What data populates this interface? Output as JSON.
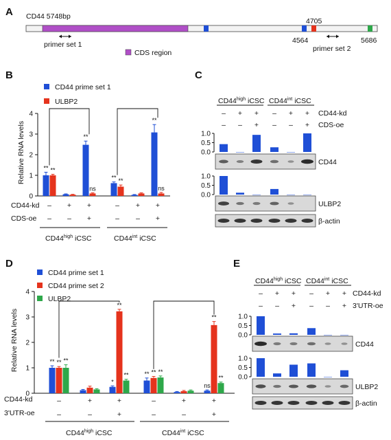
{
  "panel_labels": {
    "A": "A",
    "B": "B",
    "C": "C",
    "D": "D",
    "E": "E"
  },
  "panelA": {
    "gene_label": "CD44 5748bp",
    "pos_4705": "4705",
    "pos_4564": "4564",
    "pos_5686": "5686",
    "primer1": "primer set 1",
    "primer2": "primer set 2",
    "legend_cds": "CDS region",
    "colors": {
      "cds": "#b04fc7",
      "blue": "#1f4fd6",
      "red": "#e5331d",
      "green": "#2ea84a"
    }
  },
  "panelB": {
    "legend": [
      "CD44 prime set 1",
      "ULBP2"
    ],
    "ylabel": "Relative RNA levels",
    "row_labels": [
      "CD44-kd",
      "CDS-oe"
    ],
    "group_labels": [
      "CD44",
      "high",
      "iCSC",
      "CD44",
      "int",
      "iCSC"
    ]
  },
  "panelC": {
    "headers": [
      "CD44",
      "high",
      "iCSC",
      "CD44",
      "int",
      "iCSC"
    ],
    "row_labels": [
      "CD44-kd",
      "CDS-oe"
    ],
    "blot_labels": [
      "CD44",
      "ULBP2",
      "β-actin"
    ]
  },
  "panelD": {
    "legend": [
      "CD44 prime set 1",
      "CD44 prime set 2",
      "ULBP2"
    ],
    "ylabel": "Relative RNA levels",
    "row_labels": [
      "CD44-kd",
      "3'UTR-oe"
    ],
    "group_labels": [
      "CD44",
      "high",
      "iCSC",
      "CD44",
      "int",
      "iCSC"
    ]
  },
  "panelE": {
    "headers": [
      "CD44",
      "high",
      "iCSC",
      "CD44",
      "int",
      "iCSC"
    ],
    "row_labels": [
      "CD44-kd",
      "3'UTR-oe"
    ],
    "blot_labels": [
      "CD44",
      "ULBP2",
      "β-actin"
    ]
  },
  "chart_data": [
    {
      "panel": "B",
      "type": "bar",
      "categories": [
        "1",
        "2",
        "3",
        "4",
        "5",
        "6"
      ],
      "row_signs": {
        "CD44-kd": [
          "–",
          "+",
          "+",
          "–",
          "+",
          "+"
        ],
        "CDS-oe": [
          "–",
          "–",
          "+",
          "–",
          "–",
          "+"
        ]
      },
      "series": [
        {
          "name": "CD44 prime set 1",
          "color": "#1f4fd6",
          "values": [
            1.0,
            0.08,
            2.48,
            0.62,
            0.05,
            3.08
          ],
          "errors": [
            0.15,
            0.02,
            0.18,
            0.06,
            0.02,
            0.38
          ]
        },
        {
          "name": "ULBP2",
          "color": "#e5331d",
          "values": [
            1.0,
            0.06,
            0.12,
            0.45,
            0.12,
            0.12
          ],
          "errors": [
            0.05,
            0.02,
            0.03,
            0.08,
            0.03,
            0.05
          ]
        }
      ],
      "significance": [
        [
          "**",
          "**"
        ],
        [
          "",
          ""
        ],
        [
          "**",
          "ns"
        ],
        [
          "**",
          "**"
        ],
        [
          "",
          ""
        ],
        [
          "**",
          "ns"
        ]
      ],
      "ylim": [
        0,
        4
      ],
      "yticks": [
        "0",
        "1",
        "2",
        "3",
        "4"
      ]
    },
    {
      "panel": "C",
      "type": "bar",
      "categories": [
        "1",
        "2",
        "3",
        "4",
        "5",
        "6"
      ],
      "row_signs": {
        "CD44-kd": [
          "–",
          "+",
          "+",
          "–",
          "+",
          "+"
        ],
        "CDS-oe": [
          "–",
          "–",
          "+",
          "–",
          "–",
          "+"
        ]
      },
      "series": [
        {
          "name": "CD44",
          "color": "#1f4fd6",
          "values": [
            0.42,
            0.0,
            0.92,
            0.25,
            0.0,
            1.0
          ]
        },
        {
          "name": "ULBP2",
          "color": "#1f4fd6",
          "values": [
            1.0,
            0.1,
            0.0,
            0.3,
            0.0,
            0.0
          ]
        }
      ],
      "ylim": [
        0,
        1.0
      ],
      "yticks": [
        "0.0",
        "0.5",
        "1.0"
      ]
    },
    {
      "panel": "D",
      "type": "bar",
      "categories": [
        "1",
        "2",
        "3",
        "4",
        "5",
        "6"
      ],
      "row_signs": {
        "CD44-kd": [
          "–",
          "+",
          "+",
          "–",
          "+",
          "+"
        ],
        "3'UTR-oe": [
          "–",
          "–",
          "+",
          "–",
          "–",
          "+"
        ]
      },
      "series": [
        {
          "name": "CD44 prime set 1",
          "color": "#1f4fd6",
          "values": [
            1.0,
            0.12,
            0.25,
            0.5,
            0.05,
            0.1
          ],
          "errors": [
            0.08,
            0.03,
            0.04,
            0.1,
            0.02,
            0.03
          ]
        },
        {
          "name": "CD44 prime set 2",
          "color": "#e5331d",
          "values": [
            1.0,
            0.22,
            3.22,
            0.6,
            0.08,
            2.68
          ],
          "errors": [
            0.05,
            0.06,
            0.08,
            0.06,
            0.03,
            0.14
          ]
        },
        {
          "name": "ULBP2",
          "color": "#2ea84a",
          "values": [
            1.0,
            0.15,
            0.5,
            0.62,
            0.1,
            0.4
          ],
          "errors": [
            0.12,
            0.03,
            0.05,
            0.06,
            0.03,
            0.04
          ]
        }
      ],
      "significance": [
        [
          "**",
          "**",
          "**"
        ],
        [
          "",
          "",
          ""
        ],
        [
          "*",
          "**",
          "**"
        ],
        [
          "**",
          "**",
          "**"
        ],
        [
          "",
          "",
          ""
        ],
        [
          "ns",
          "**",
          "**"
        ]
      ],
      "ylim": [
        0,
        4
      ],
      "yticks": [
        "0",
        "1",
        "2",
        "3",
        "4"
      ]
    },
    {
      "panel": "E",
      "type": "bar",
      "categories": [
        "1",
        "2",
        "3",
        "4",
        "5",
        "6"
      ],
      "row_signs": {
        "CD44-kd": [
          "–",
          "+",
          "+",
          "–",
          "+",
          "+"
        ],
        "3'UTR-oe": [
          "–",
          "–",
          "+",
          "–",
          "–",
          "+"
        ]
      },
      "series": [
        {
          "name": "CD44",
          "color": "#1f4fd6",
          "values": [
            1.0,
            0.07,
            0.08,
            0.36,
            0.0,
            0.0
          ]
        },
        {
          "name": "ULBP2",
          "color": "#1f4fd6",
          "values": [
            1.0,
            0.18,
            0.65,
            0.72,
            0.0,
            0.35
          ]
        }
      ],
      "ylim": [
        0,
        1.0
      ],
      "yticks": [
        "0.0",
        "0.5",
        "1.0"
      ]
    }
  ]
}
